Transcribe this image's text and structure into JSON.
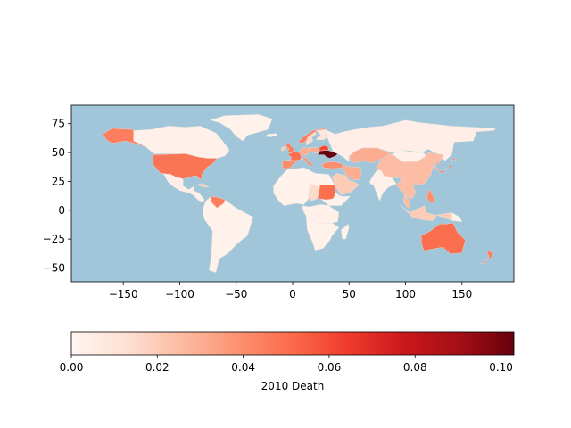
{
  "chart_data": {
    "type": "choropleth-map",
    "title": "",
    "map": {
      "xlim": [
        -196,
        196
      ],
      "ylim": [
        -62,
        91
      ],
      "x_ticks": [
        -150,
        -100,
        -50,
        0,
        50,
        100,
        150
      ],
      "y_ticks": [
        75,
        50,
        25,
        0,
        -25,
        -50
      ],
      "ocean_color": "#a1c6da",
      "no_data_color": "#fff5f0"
    },
    "colorbar": {
      "label": "2010 Death",
      "cmap": "Reds",
      "range": [
        0,
        0.103
      ],
      "ticks": [
        0.0,
        0.02,
        0.04,
        0.06,
        0.08,
        0.1
      ],
      "tick_labels": [
        "0.00",
        "0.02",
        "0.04",
        "0.06",
        "0.08",
        "0.10"
      ]
    },
    "regions": [
      {
        "name": "Canada",
        "value": 0.003
      },
      {
        "name": "Alaska",
        "value": 0.045
      },
      {
        "name": "United States",
        "value": 0.048
      },
      {
        "name": "Mexico",
        "value": 0.004
      },
      {
        "name": "Central America",
        "value": 0.003
      },
      {
        "name": "Cuba",
        "value": 0.02
      },
      {
        "name": "Greenland",
        "value": 0.002
      },
      {
        "name": "South America",
        "value": 0.002
      },
      {
        "name": "Venezuela",
        "value": 0.045
      },
      {
        "name": "Iceland",
        "value": 0.002
      },
      {
        "name": "Norway",
        "value": 0.045
      },
      {
        "name": "Sweden",
        "value": 0.015
      },
      {
        "name": "Finland",
        "value": 0.01
      },
      {
        "name": "United Kingdom",
        "value": 0.045
      },
      {
        "name": "Ireland",
        "value": 0.02
      },
      {
        "name": "France",
        "value": 0.05
      },
      {
        "name": "Spain",
        "value": 0.04
      },
      {
        "name": "Germany",
        "value": 0.03
      },
      {
        "name": "Poland",
        "value": 0.03
      },
      {
        "name": "Italy",
        "value": 0.04
      },
      {
        "name": "Ukraine",
        "value": 0.103
      },
      {
        "name": "Belarus",
        "value": 0.06
      },
      {
        "name": "Turkey",
        "value": 0.04
      },
      {
        "name": "Russia",
        "value": 0.004
      },
      {
        "name": "Kazakhstan",
        "value": 0.03
      },
      {
        "name": "China",
        "value": 0.025
      },
      {
        "name": "Mongolia",
        "value": 0.003
      },
      {
        "name": "Korea",
        "value": 0.035
      },
      {
        "name": "Japan",
        "value": 0.05
      },
      {
        "name": "Iran",
        "value": 0.03
      },
      {
        "name": "Arabia",
        "value": 0.02
      },
      {
        "name": "India",
        "value": 0.003
      },
      {
        "name": "Southeast Asia",
        "value": 0.025
      },
      {
        "name": "Philippines",
        "value": 0.04
      },
      {
        "name": "Indonesia",
        "value": 0.02
      },
      {
        "name": "North Africa",
        "value": 0.002
      },
      {
        "name": "Chad",
        "value": 0.015
      },
      {
        "name": "Sudan",
        "value": 0.05
      },
      {
        "name": "Central Africa",
        "value": 0.003
      },
      {
        "name": "Southern Africa",
        "value": 0.002
      },
      {
        "name": "Madagascar",
        "value": 0.002
      },
      {
        "name": "Australia",
        "value": 0.05
      },
      {
        "name": "New Zealand",
        "value": 0.045
      },
      {
        "name": "Papua New Guinea",
        "value": 0.002
      }
    ]
  }
}
